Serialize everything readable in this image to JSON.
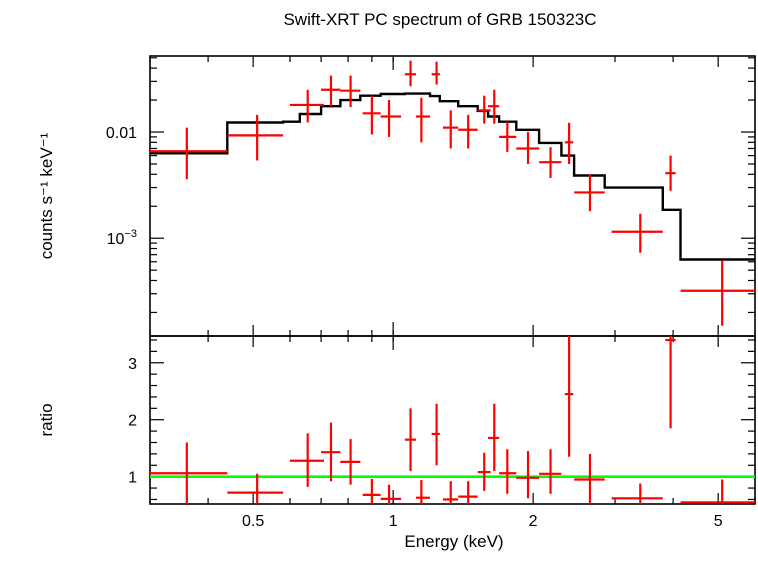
{
  "colors": {
    "data": "#ff0000",
    "model": "#000000",
    "unity_line": "#00ff00",
    "axes": "#000000"
  },
  "chart_data": [
    {
      "type": "scatter",
      "panel": "spectrum",
      "title": "Swift-XRT PC spectrum of GRB 150323C",
      "ylabel": "counts s⁻¹ keV⁻¹",
      "xlabel": "",
      "x_scale": "log",
      "y_scale": "log",
      "xlim": [
        0.3,
        6.0
      ],
      "ylim": [
        0.00012,
        0.052
      ],
      "y_tick_labels": [
        {
          "value": 0.01,
          "label": "0.01",
          "sup": ""
        },
        {
          "value": 0.001,
          "label": "10",
          "sup": "−3"
        }
      ],
      "series": [
        {
          "kind": "data-with-errors",
          "points": [
            {
              "x": 0.36,
              "xlo": 0.3,
              "xhi": 0.44,
              "y": 0.0066,
              "ylo": 0.0036,
              "yhi": 0.011
            },
            {
              "x": 0.51,
              "xlo": 0.44,
              "xhi": 0.58,
              "y": 0.0093,
              "ylo": 0.0054,
              "yhi": 0.0145
            },
            {
              "x": 0.655,
              "xlo": 0.6,
              "xhi": 0.71,
              "y": 0.018,
              "ylo": 0.0123,
              "yhi": 0.025
            },
            {
              "x": 0.735,
              "xlo": 0.7,
              "xhi": 0.77,
              "y": 0.025,
              "ylo": 0.0175,
              "yhi": 0.034
            },
            {
              "x": 0.81,
              "xlo": 0.77,
              "xhi": 0.85,
              "y": 0.0245,
              "ylo": 0.0172,
              "yhi": 0.034
            },
            {
              "x": 0.9,
              "xlo": 0.86,
              "xhi": 0.94,
              "y": 0.015,
              "ylo": 0.0095,
              "yhi": 0.022
            },
            {
              "x": 0.98,
              "xlo": 0.94,
              "xhi": 1.04,
              "y": 0.014,
              "ylo": 0.009,
              "yhi": 0.02
            },
            {
              "x": 1.09,
              "xlo": 1.06,
              "xhi": 1.12,
              "y": 0.035,
              "ylo": 0.027,
              "yhi": 0.047
            },
            {
              "x": 1.15,
              "xlo": 1.12,
              "xhi": 1.2,
              "y": 0.014,
              "ylo": 0.008,
              "yhi": 0.021
            },
            {
              "x": 1.24,
              "xlo": 1.21,
              "xhi": 1.26,
              "y": 0.035,
              "ylo": 0.028,
              "yhi": 0.046
            },
            {
              "x": 1.33,
              "xlo": 1.28,
              "xhi": 1.38,
              "y": 0.011,
              "ylo": 0.007,
              "yhi": 0.016
            },
            {
              "x": 1.45,
              "xlo": 1.38,
              "xhi": 1.52,
              "y": 0.0105,
              "ylo": 0.007,
              "yhi": 0.0145
            },
            {
              "x": 1.57,
              "xlo": 1.52,
              "xhi": 1.62,
              "y": 0.016,
              "ylo": 0.012,
              "yhi": 0.022
            },
            {
              "x": 1.65,
              "xlo": 1.6,
              "xhi": 1.69,
              "y": 0.0175,
              "ylo": 0.012,
              "yhi": 0.025
            },
            {
              "x": 1.76,
              "xlo": 1.69,
              "xhi": 1.84,
              "y": 0.009,
              "ylo": 0.0065,
              "yhi": 0.0125
            },
            {
              "x": 1.95,
              "xlo": 1.84,
              "xhi": 2.06,
              "y": 0.007,
              "ylo": 0.005,
              "yhi": 0.01
            },
            {
              "x": 2.18,
              "xlo": 2.06,
              "xhi": 2.3,
              "y": 0.0052,
              "ylo": 0.0037,
              "yhi": 0.0072
            },
            {
              "x": 2.39,
              "xlo": 2.34,
              "xhi": 2.44,
              "y": 0.008,
              "ylo": 0.005,
              "yhi": 0.0122
            },
            {
              "x": 2.65,
              "xlo": 2.45,
              "xhi": 2.85,
              "y": 0.0027,
              "ylo": 0.0018,
              "yhi": 0.004
            },
            {
              "x": 3.4,
              "xlo": 2.95,
              "xhi": 3.8,
              "y": 0.00115,
              "ylo": 0.00073,
              "yhi": 0.0017
            },
            {
              "x": 3.95,
              "xlo": 3.85,
              "xhi": 4.05,
              "y": 0.0041,
              "ylo": 0.0028,
              "yhi": 0.006
            },
            {
              "x": 5.1,
              "xlo": 4.15,
              "xhi": 6.0,
              "y": 0.00032,
              "ylo": 0.00015,
              "yhi": 0.00062
            }
          ]
        },
        {
          "kind": "model-step",
          "edges": [
            0.3,
            0.44,
            0.58,
            0.63,
            0.7,
            0.77,
            0.85,
            0.94,
            1.06,
            1.2,
            1.26,
            1.38,
            1.52,
            1.6,
            1.69,
            1.84,
            2.06,
            2.3,
            2.45,
            2.85,
            3.8,
            4.15,
            6.0
          ],
          "values": [
            0.0063,
            0.0123,
            0.0125,
            0.0148,
            0.0175,
            0.02,
            0.022,
            0.0228,
            0.023,
            0.0218,
            0.0195,
            0.0175,
            0.0158,
            0.014,
            0.0125,
            0.0105,
            0.0079,
            0.006,
            0.0039,
            0.003,
            0.00185,
            0.00063
          ]
        }
      ]
    },
    {
      "type": "scatter",
      "panel": "ratio",
      "title": "",
      "xlabel": "Energy (keV)",
      "ylabel": "ratio",
      "x_scale": "log",
      "y_scale": "linear",
      "xlim": [
        0.3,
        6.0
      ],
      "ylim": [
        0.52,
        3.47
      ],
      "x_tick_labels": [
        {
          "value": 0.5,
          "label": "0.5"
        },
        {
          "value": 1,
          "label": "1"
        },
        {
          "value": 2,
          "label": "2"
        },
        {
          "value": 5,
          "label": "5"
        }
      ],
      "y_tick_labels": [
        {
          "value": 1,
          "label": "1"
        },
        {
          "value": 2,
          "label": "2"
        },
        {
          "value": 3,
          "label": "3"
        }
      ],
      "reference_line": 1,
      "series": [
        {
          "kind": "data-with-errors",
          "points": [
            {
              "x": 0.36,
              "xlo": 0.3,
              "xhi": 0.44,
              "y": 1.06,
              "ylo": 0.52,
              "yhi": 1.6
            },
            {
              "x": 0.51,
              "xlo": 0.44,
              "xhi": 0.58,
              "y": 0.72,
              "ylo": 0.52,
              "yhi": 1.05
            },
            {
              "x": 0.655,
              "xlo": 0.6,
              "xhi": 0.71,
              "y": 1.28,
              "ylo": 0.82,
              "yhi": 1.76
            },
            {
              "x": 0.735,
              "xlo": 0.7,
              "xhi": 0.77,
              "y": 1.43,
              "ylo": 0.92,
              "yhi": 1.95
            },
            {
              "x": 0.81,
              "xlo": 0.77,
              "xhi": 0.85,
              "y": 1.26,
              "ylo": 0.86,
              "yhi": 1.66
            },
            {
              "x": 0.9,
              "xlo": 0.86,
              "xhi": 0.94,
              "y": 0.68,
              "ylo": 0.52,
              "yhi": 0.96
            },
            {
              "x": 0.98,
              "xlo": 0.94,
              "xhi": 1.04,
              "y": 0.61,
              "ylo": 0.52,
              "yhi": 0.86
            },
            {
              "x": 1.09,
              "xlo": 1.06,
              "xhi": 1.12,
              "y": 1.65,
              "ylo": 1.1,
              "yhi": 2.2
            },
            {
              "x": 1.15,
              "xlo": 1.12,
              "xhi": 1.2,
              "y": 0.63,
              "ylo": 0.52,
              "yhi": 0.94
            },
            {
              "x": 1.24,
              "xlo": 1.21,
              "xhi": 1.26,
              "y": 1.75,
              "ylo": 1.2,
              "yhi": 2.28
            },
            {
              "x": 1.33,
              "xlo": 1.28,
              "xhi": 1.38,
              "y": 0.6,
              "ylo": 0.52,
              "yhi": 0.92
            },
            {
              "x": 1.45,
              "xlo": 1.38,
              "xhi": 1.52,
              "y": 0.65,
              "ylo": 0.52,
              "yhi": 0.92
            },
            {
              "x": 1.57,
              "xlo": 1.52,
              "xhi": 1.62,
              "y": 1.08,
              "ylo": 0.75,
              "yhi": 1.42
            },
            {
              "x": 1.65,
              "xlo": 1.6,
              "xhi": 1.69,
              "y": 1.68,
              "ylo": 1.1,
              "yhi": 2.28
            },
            {
              "x": 1.76,
              "xlo": 1.69,
              "xhi": 1.84,
              "y": 1.06,
              "ylo": 0.7,
              "yhi": 1.48
            },
            {
              "x": 1.95,
              "xlo": 1.84,
              "xhi": 2.06,
              "y": 0.98,
              "ylo": 0.62,
              "yhi": 1.45
            },
            {
              "x": 2.18,
              "xlo": 2.06,
              "xhi": 2.3,
              "y": 1.05,
              "ylo": 0.7,
              "yhi": 1.48
            },
            {
              "x": 2.39,
              "xlo": 2.34,
              "xhi": 2.44,
              "y": 2.45,
              "ylo": 1.35,
              "yhi": 3.47
            },
            {
              "x": 2.65,
              "xlo": 2.45,
              "xhi": 2.85,
              "y": 0.95,
              "ylo": 0.52,
              "yhi": 1.4
            },
            {
              "x": 3.4,
              "xlo": 2.95,
              "xhi": 3.8,
              "y": 0.62,
              "ylo": 0.52,
              "yhi": 0.88
            },
            {
              "x": 3.95,
              "xlo": 3.85,
              "xhi": 4.05,
              "y": 3.4,
              "ylo": 1.85,
              "yhi": 3.47
            },
            {
              "x": 5.1,
              "xlo": 4.15,
              "xhi": 6.0,
              "y": 0.55,
              "ylo": 0.52,
              "yhi": 0.95
            }
          ]
        }
      ]
    }
  ]
}
